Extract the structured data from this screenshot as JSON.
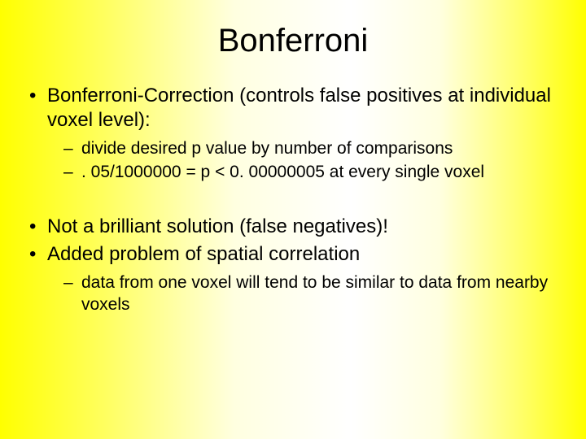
{
  "slide": {
    "title": "Bonferroni",
    "background": {
      "gradient_stops": [
        "#ffff00",
        "#ffff60",
        "#ffffe0",
        "#ffffff",
        "#ffffe0",
        "#ffff60",
        "#ffff00"
      ],
      "direction": "horizontal"
    },
    "title_fontsize": 40,
    "body_fontsize": 24,
    "sub_fontsize": 21,
    "text_color": "#000000",
    "bullets": [
      {
        "text": "Bonferroni-Correction (controls false positives at individual voxel level):",
        "sub": [
          "divide desired p value by number of comparisons",
          ". 05/1000000 = p < 0. 00000005 at every single voxel"
        ]
      },
      {
        "text": "Not a brilliant solution (false negatives)!",
        "sub": []
      },
      {
        "text": "Added problem of spatial correlation",
        "sub": [
          "data from one voxel will tend to be similar to data from nearby voxels"
        ]
      }
    ]
  }
}
